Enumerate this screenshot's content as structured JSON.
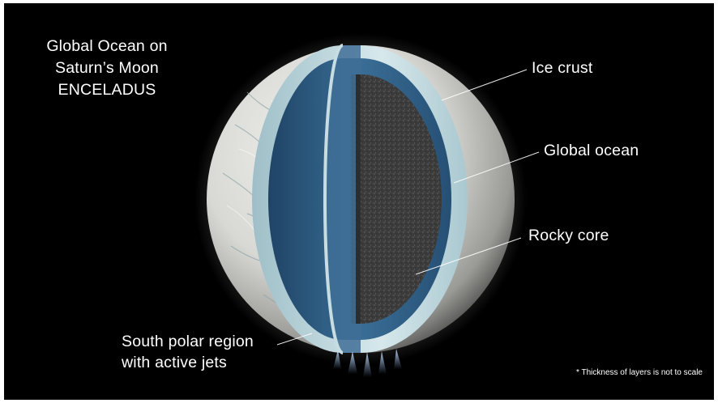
{
  "title": {
    "line1": "Global Ocean on",
    "line2": "Saturn’s Moon",
    "line3": "ENCELADUS"
  },
  "labels": {
    "ice_crust": "Ice crust",
    "global_ocean": "Global ocean",
    "rocky_core": "Rocky core",
    "south_polar_line1": "South polar region",
    "south_polar_line2": "with active jets"
  },
  "footnote": "* Thickness of layers is not to scale",
  "colors": {
    "background": "#000000",
    "text": "#ffffff",
    "ice_shell": "#bcd6dc",
    "ocean": "#2e5e85",
    "core": "#3a3a3a",
    "surface": "#d9d9d6"
  }
}
